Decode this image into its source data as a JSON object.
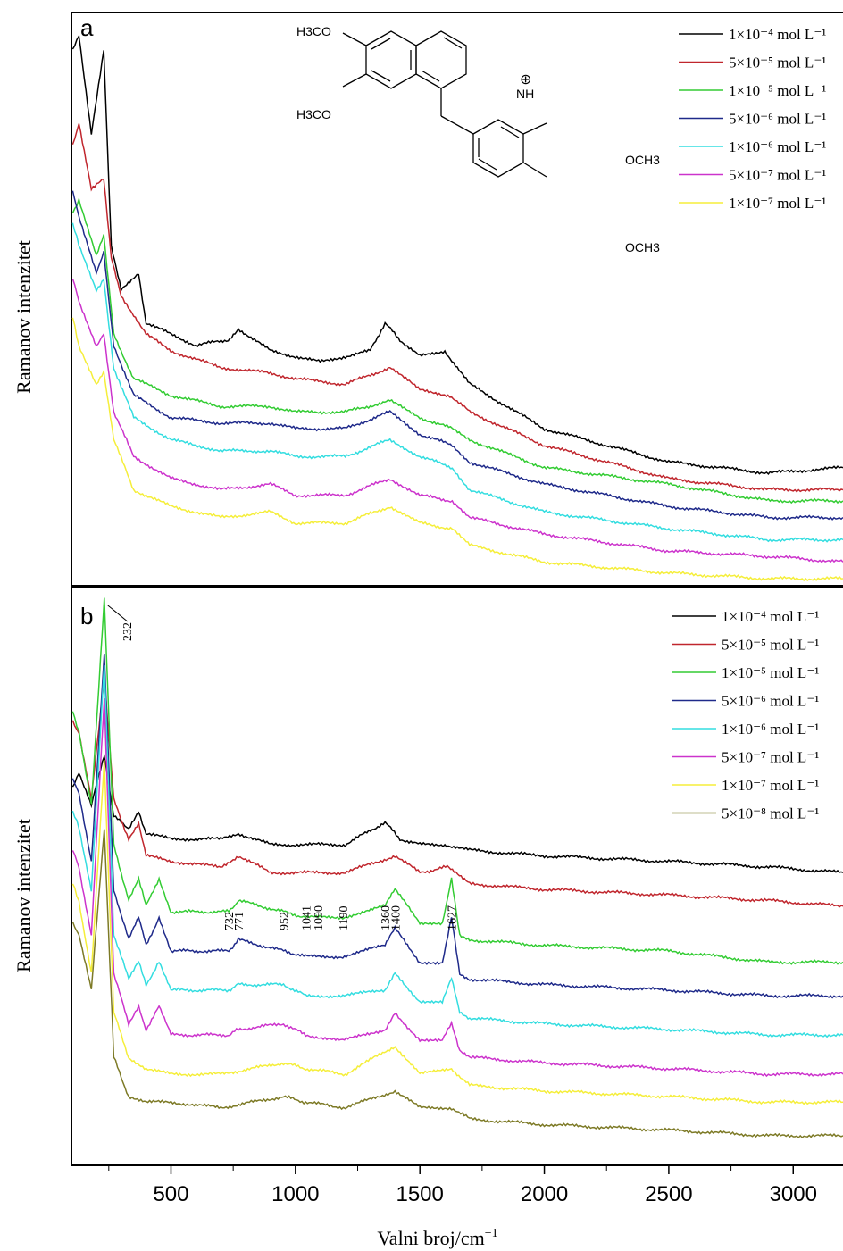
{
  "figure": {
    "ylabel": "Ramanov intenzitet",
    "xlabel": "Valni broj/cm",
    "xlabel_sup": "−1",
    "x_ticks": [
      "500",
      "1000",
      "1500",
      "2000",
      "2500",
      "3000"
    ]
  },
  "structure": {
    "labels": [
      "H3CO",
      "H3CO",
      "OCH3",
      "OCH3",
      "NH",
      "⊕"
    ]
  },
  "chart_data": [
    {
      "type": "line",
      "panel_label": "a",
      "xlim": [
        100,
        3200
      ],
      "ylim": [
        0,
        100
      ],
      "legend_placement": "top-right",
      "series": [
        {
          "name": "1×10⁻⁴ mol L⁻¹",
          "color": "#000000",
          "x": [
            105,
            130,
            180,
            230,
            260,
            300,
            370,
            400,
            500,
            600,
            730,
            771,
            900,
            1000,
            1100,
            1300,
            1360,
            1420,
            1500,
            1600,
            1700,
            2000,
            2500,
            2900,
            3200
          ],
          "y": [
            95,
            98,
            80,
            95,
            60,
            52,
            55,
            46,
            44,
            42,
            43,
            45,
            41,
            40,
            39,
            41,
            46,
            43,
            40,
            41,
            35,
            27,
            21,
            19,
            20
          ]
        },
        {
          "name": "5×10⁻⁵ mol L⁻¹",
          "color": "#c0262d",
          "x": [
            105,
            130,
            180,
            230,
            260,
            300,
            400,
            500,
            700,
            900,
            1000,
            1200,
            1380,
            1500,
            1620,
            1700,
            2000,
            2500,
            2900,
            3200
          ],
          "y": [
            78,
            82,
            70,
            72,
            58,
            51,
            44,
            41,
            38,
            37,
            36,
            35,
            38,
            34,
            33,
            30,
            24,
            18,
            16,
            16
          ]
        },
        {
          "name": "1×10⁻⁵ mol L⁻¹",
          "color": "#33cc33",
          "x": [
            105,
            130,
            200,
            230,
            270,
            350,
            500,
            700,
            900,
            1000,
            1200,
            1380,
            1500,
            1630,
            1700,
            2000,
            2500,
            2900,
            3200
          ],
          "y": [
            66,
            68,
            58,
            62,
            44,
            36,
            33,
            31,
            31,
            30,
            30,
            32,
            29,
            27,
            25,
            20,
            17,
            14,
            14
          ]
        },
        {
          "name": "5×10⁻⁶ mol L⁻¹",
          "color": "#1f2a8a",
          "x": [
            105,
            130,
            200,
            230,
            270,
            350,
            500,
            700,
            900,
            1000,
            1200,
            1380,
            1500,
            1630,
            1700,
            2000,
            2500,
            2900,
            3200
          ],
          "y": [
            70,
            65,
            55,
            59,
            42,
            33,
            29,
            28,
            28,
            27,
            27,
            30,
            26,
            24,
            21,
            17,
            13,
            11,
            11
          ]
        },
        {
          "name": "1×10⁻⁶ mol L⁻¹",
          "color": "#33dde0",
          "x": [
            105,
            130,
            200,
            230,
            270,
            350,
            500,
            700,
            900,
            1000,
            1200,
            1380,
            1500,
            1630,
            1700,
            2000,
            2500,
            2900,
            3200
          ],
          "y": [
            64,
            60,
            52,
            54,
            38,
            29,
            25,
            23,
            23,
            22,
            22,
            25,
            22,
            20,
            16,
            12,
            9,
            7,
            7
          ]
        },
        {
          "name": "5×10⁻⁷ mol L⁻¹",
          "color": "#cc33cc",
          "x": [
            105,
            130,
            200,
            230,
            270,
            350,
            500,
            700,
            900,
            1000,
            1200,
            1380,
            1500,
            1630,
            1700,
            2000,
            2500,
            2900,
            3200
          ],
          "y": [
            54,
            50,
            42,
            44,
            30,
            22,
            18,
            16,
            17,
            15,
            15,
            18,
            15,
            14,
            11,
            8,
            5,
            4,
            3
          ]
        },
        {
          "name": "1×10⁻⁷ mol L⁻¹",
          "color": "#f5ee3a",
          "x": [
            105,
            130,
            200,
            230,
            270,
            350,
            500,
            700,
            900,
            1000,
            1200,
            1380,
            1500,
            1630,
            1700,
            2000,
            2500,
            2900,
            3200
          ],
          "y": [
            47,
            42,
            35,
            37,
            25,
            16,
            13,
            11,
            12,
            10,
            10,
            13,
            10,
            9,
            6,
            3,
            1,
            0,
            0
          ]
        }
      ]
    },
    {
      "type": "line",
      "panel_label": "b",
      "xlim": [
        100,
        3200
      ],
      "ylim": [
        0,
        100
      ],
      "legend_placement": "top-right",
      "annotations": [
        {
          "x": 232,
          "label": "232"
        },
        {
          "x": 732,
          "label": "732"
        },
        {
          "x": 771,
          "label": "771"
        },
        {
          "x": 952,
          "label": "952"
        },
        {
          "x": 1041,
          "label": "1041"
        },
        {
          "x": 1090,
          "label": "1090"
        },
        {
          "x": 1190,
          "label": "1190"
        },
        {
          "x": 1360,
          "label": "1360"
        },
        {
          "x": 1400,
          "label": "1400"
        },
        {
          "x": 1627,
          "label": "1627"
        }
      ],
      "series": [
        {
          "name": "1×10⁻⁴ mol L⁻¹",
          "color": "#000000",
          "x": [
            105,
            130,
            180,
            232,
            270,
            330,
            370,
            400,
            500,
            700,
            771,
            900,
            1000,
            1200,
            1360,
            1420,
            1500,
            1600,
            1700,
            2000,
            2500,
            2900,
            3200
          ],
          "y": [
            66,
            69,
            63,
            72,
            61,
            59,
            62,
            58,
            57,
            57,
            58,
            56,
            56,
            56,
            60,
            57,
            56,
            56,
            55,
            54,
            53,
            52,
            51
          ]
        },
        {
          "name": "5×10⁻⁵ mol L⁻¹",
          "color": "#c0262d",
          "x": [
            105,
            130,
            180,
            232,
            270,
            330,
            370,
            400,
            500,
            700,
            771,
            900,
            1000,
            1200,
            1400,
            1500,
            1610,
            1700,
            2000,
            2500,
            2900,
            3200
          ],
          "y": [
            78,
            76,
            64,
            86,
            64,
            57,
            60,
            54,
            53,
            52,
            54,
            51,
            51,
            51,
            54,
            51,
            52,
            49,
            48,
            47,
            46,
            45
          ]
        },
        {
          "name": "1×10⁻⁵ mol L⁻¹",
          "color": "#33cc33",
          "x": [
            105,
            130,
            180,
            232,
            270,
            330,
            370,
            400,
            452,
            500,
            732,
            771,
            952,
            1041,
            1190,
            1360,
            1400,
            1500,
            1590,
            1627,
            1660,
            1700,
            2000,
            2500,
            2900,
            3200
          ],
          "y": [
            80,
            76,
            63,
            100,
            56,
            46,
            50,
            45,
            50,
            44,
            44,
            46,
            44,
            43,
            43,
            45,
            48,
            42,
            42,
            50,
            40,
            39,
            38,
            37,
            35,
            35
          ]
        },
        {
          "name": "5×10⁻⁶ mol L⁻¹",
          "color": "#1f2a8a",
          "x": [
            105,
            130,
            180,
            232,
            270,
            330,
            370,
            400,
            452,
            500,
            732,
            771,
            952,
            1041,
            1190,
            1360,
            1400,
            1500,
            1590,
            1627,
            1660,
            1700,
            2000,
            2500,
            2900,
            3200
          ],
          "y": [
            68,
            65,
            53,
            90,
            48,
            39,
            43,
            38,
            43,
            37,
            37,
            39,
            37,
            36,
            36,
            38,
            41,
            35,
            35,
            43,
            33,
            32,
            31,
            30,
            29,
            29
          ]
        },
        {
          "name": "1×10⁻⁶ mol L⁻¹",
          "color": "#33dde0",
          "x": [
            105,
            130,
            180,
            232,
            270,
            330,
            370,
            400,
            452,
            500,
            732,
            771,
            952,
            1041,
            1190,
            1360,
            1400,
            1500,
            1590,
            1627,
            1660,
            1700,
            2000,
            2500,
            2900,
            3200
          ],
          "y": [
            62,
            59,
            48,
            88,
            40,
            32,
            35,
            31,
            35,
            30,
            30,
            31,
            31,
            29,
            29,
            30,
            33,
            28,
            28,
            32,
            26,
            25,
            24,
            23,
            22,
            22
          ]
        },
        {
          "name": "5×10⁻⁷ mol L⁻¹",
          "color": "#cc33cc",
          "x": [
            105,
            130,
            180,
            232,
            270,
            330,
            370,
            400,
            452,
            500,
            732,
            771,
            952,
            1041,
            1190,
            1360,
            1400,
            1500,
            1590,
            1627,
            1660,
            1700,
            2000,
            2500,
            2900,
            3200
          ],
          "y": [
            55,
            52,
            40,
            82,
            33,
            24,
            27,
            23,
            27,
            22,
            22,
            23,
            24,
            22,
            21,
            23,
            26,
            21,
            21,
            24,
            19,
            18,
            17,
            16,
            15,
            15
          ]
        },
        {
          "name": "1×10⁻⁷ mol L⁻¹",
          "color": "#f5ee3a",
          "x": [
            105,
            130,
            180,
            232,
            270,
            330,
            400,
            500,
            700,
            952,
            1041,
            1200,
            1400,
            1500,
            1627,
            1700,
            2000,
            2500,
            2900,
            3200
          ],
          "y": [
            49,
            46,
            33,
            71,
            26,
            18,
            16,
            15,
            15,
            17,
            16,
            15,
            20,
            15,
            16,
            13,
            12,
            11,
            10,
            10
          ]
        },
        {
          "name": "5×10⁻⁸ mol L⁻¹",
          "color": "#7d7a26",
          "x": [
            105,
            130,
            180,
            232,
            270,
            330,
            400,
            500,
            700,
            952,
            1041,
            1200,
            1400,
            1500,
            1627,
            1700,
            2000,
            2500,
            2900,
            3200
          ],
          "y": [
            42,
            40,
            30,
            59,
            18,
            11,
            10,
            10,
            9,
            11,
            10,
            9,
            12,
            9,
            9,
            7,
            6,
            5,
            4,
            4
          ]
        }
      ]
    }
  ]
}
